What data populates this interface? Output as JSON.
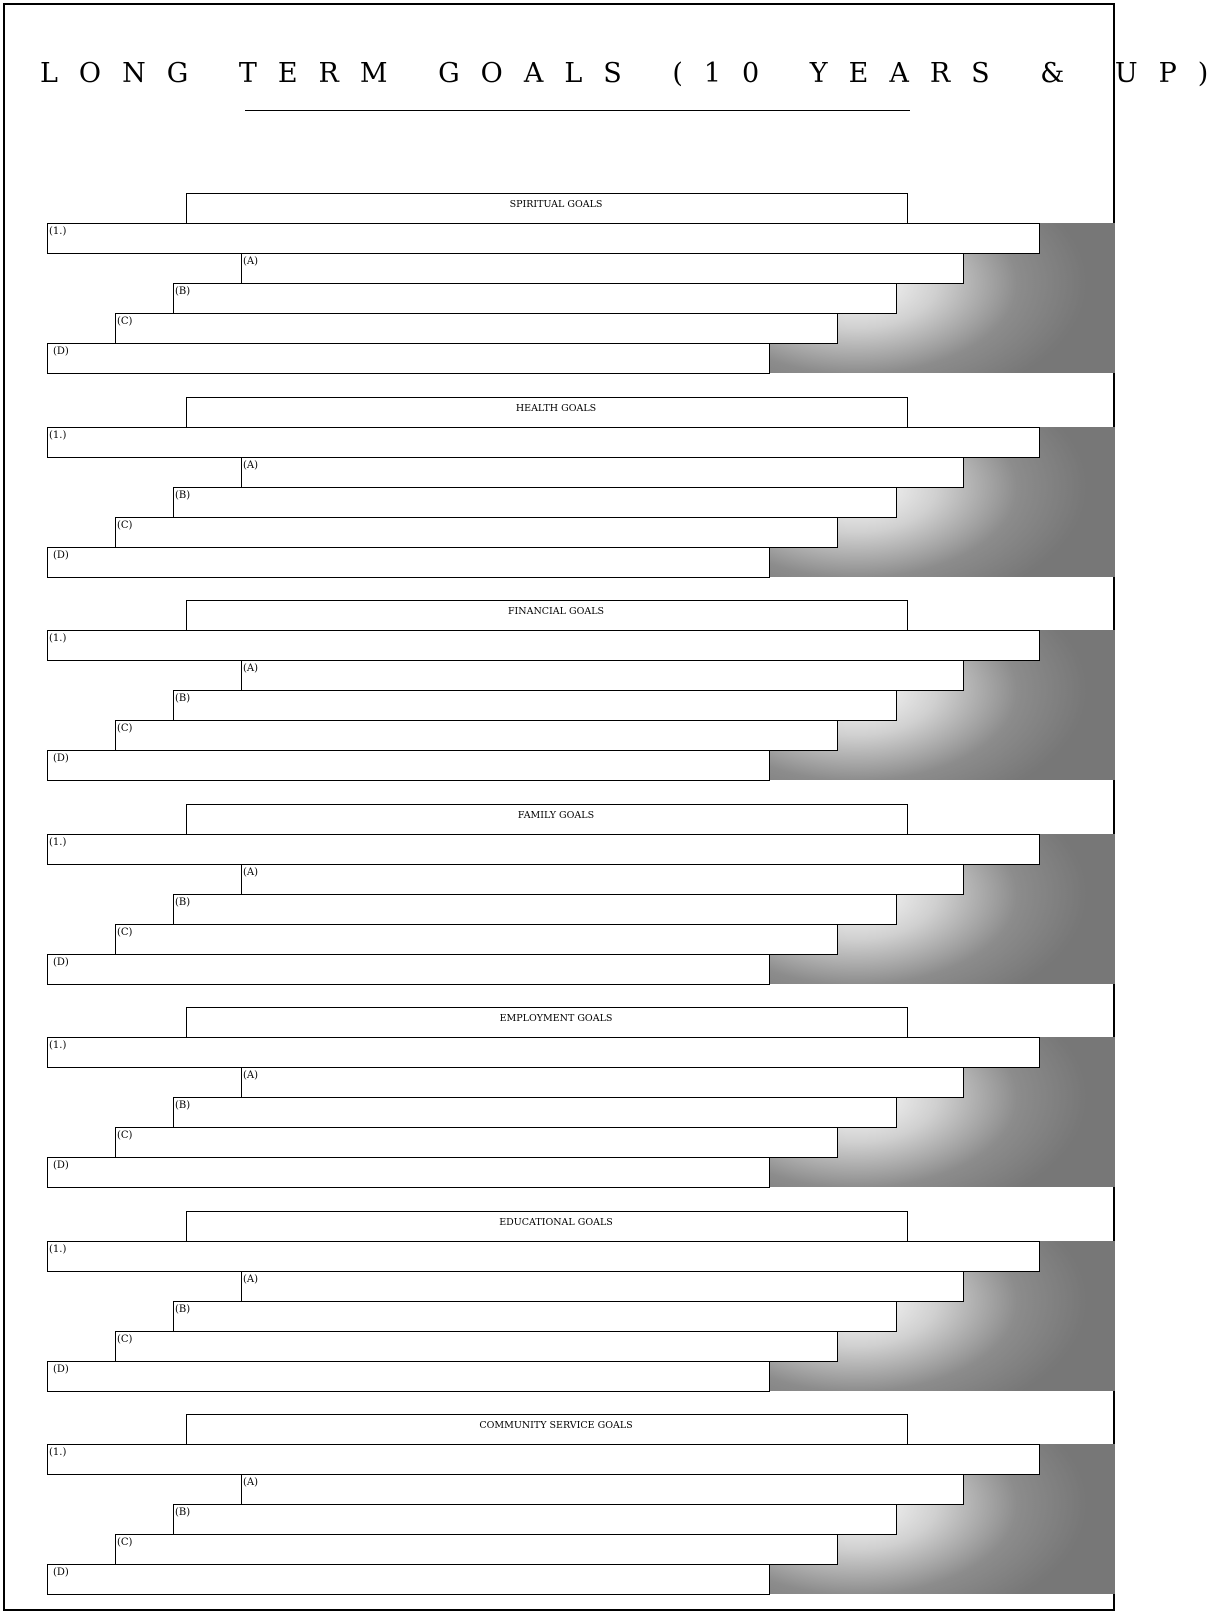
{
  "title": "LONG TERM GOALS (10 YEARS & UP)",
  "row_labels": [
    "(1.)",
    "(A)",
    "(B)",
    "(C)",
    "(D)"
  ],
  "sections": [
    {
      "title": "SPIRITUAL GOALS"
    },
    {
      "title": "HEALTH GOALS"
    },
    {
      "title": "FINANCIAL GOALS"
    },
    {
      "title": "FAMILY GOALS"
    },
    {
      "title": "EMPLOYMENT GOALS"
    },
    {
      "title": "EDUCATIONAL GOALS"
    },
    {
      "title": "COMMUNITY SERVICE GOALS"
    }
  ]
}
